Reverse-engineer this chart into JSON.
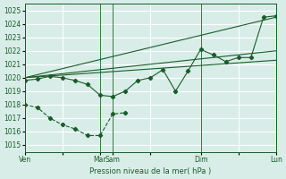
{
  "title": "",
  "xlabel": "Pression niveau de la mer( hPa )",
  "ylabel": "",
  "ylim": [
    1014.5,
    1025.5
  ],
  "yticks": [
    1015,
    1016,
    1017,
    1018,
    1019,
    1020,
    1021,
    1022,
    1023,
    1024,
    1025
  ],
  "bg_color": "#d8ede8",
  "grid_color": "#ffffff",
  "line_color": "#1a5c2a",
  "tick_label_color": "#1a5c2a",
  "xlabel_color": "#1a5c2a",
  "xtick_labels": [
    "Ven",
    "",
    "Mar",
    "Sam",
    "",
    "Dim",
    "",
    "Lun"
  ],
  "xtick_positions": [
    0,
    3,
    6,
    7,
    10,
    14,
    17,
    20
  ],
  "series1_x": [
    0,
    1,
    2,
    3,
    4,
    5,
    6,
    7,
    8,
    9,
    10,
    11,
    12,
    13,
    14,
    15,
    16,
    17,
    18,
    19,
    20
  ],
  "series1_y": [
    1019.8,
    1019.9,
    1020.1,
    1020.0,
    1019.8,
    1019.5,
    1018.7,
    1018.6,
    1019.0,
    1019.8,
    1020.0,
    1020.6,
    1019.0,
    1020.5,
    1022.1,
    1021.7,
    1021.2,
    1021.5,
    1021.5,
    1024.5,
    1024.6
  ],
  "series2_x": [
    0,
    20
  ],
  "series2_y": [
    1020.0,
    1021.3
  ],
  "series3_x": [
    0,
    20
  ],
  "series3_y": [
    1020.0,
    1022.0
  ],
  "series4_x": [
    0,
    20
  ],
  "series4_y": [
    1020.0,
    1024.5
  ],
  "series5_x": [
    0,
    1,
    2,
    3,
    4,
    5,
    6,
    7,
    8
  ],
  "series5_y": [
    1018.0,
    1017.8,
    1017.0,
    1016.5,
    1016.2,
    1015.7,
    1015.7,
    1017.3,
    1017.4
  ],
  "vline_positions": [
    0,
    6,
    7,
    14,
    20
  ],
  "figsize": [
    3.2,
    2.0
  ],
  "dpi": 100
}
